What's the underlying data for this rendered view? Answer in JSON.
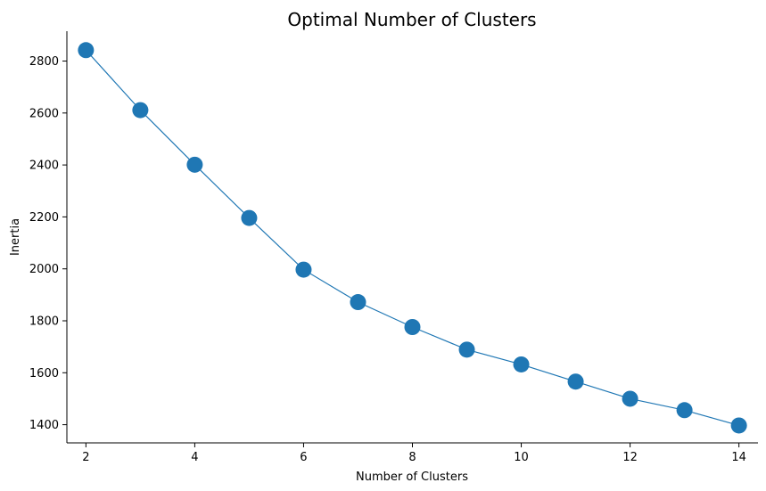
{
  "chart_data": {
    "type": "line",
    "title": "Optimal Number of Clusters",
    "xlabel": "Number of Clusters",
    "ylabel": "Inertia",
    "xlim": [
      1.65,
      14.35
    ],
    "ylim": [
      1330,
      2915
    ],
    "xticks": [
      2,
      4,
      6,
      8,
      10,
      12,
      14
    ],
    "yticks": [
      1400,
      1600,
      1800,
      2000,
      2200,
      2400,
      2600,
      2800
    ],
    "grid": false,
    "series": [
      {
        "color": "#1f77b4",
        "marker": "circle",
        "x": [
          2,
          3,
          4,
          5,
          6,
          7,
          8,
          9,
          10,
          11,
          12,
          13,
          14
        ],
        "y": [
          2842,
          2611,
          2401,
          2196,
          1997,
          1872,
          1776,
          1689,
          1632,
          1566,
          1500,
          1456,
          1397
        ]
      }
    ]
  }
}
